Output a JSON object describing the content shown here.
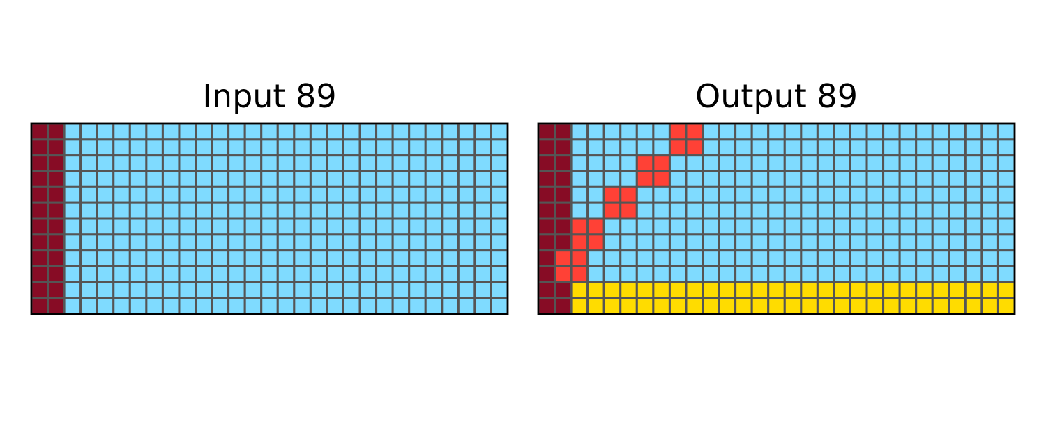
{
  "palette": {
    "0": "#000000",
    "1": "#0074d9",
    "2": "#ff4136",
    "3": "#2ecc40",
    "4": "#ffdc00",
    "5": "#aaaaaa",
    "6": "#f012be",
    "7": "#ff851b",
    "8": "#7fdbff",
    "9": "#870c25"
  },
  "grid_line_color": "#555555",
  "frame_color": "#000000",
  "panels": [
    {
      "title": "Input 89",
      "rows": [
        "99888888888888888888888888888",
        "99888888888888888888888888888",
        "99888888888888888888888888888",
        "99888888888888888888888888888",
        "99888888888888888888888888888",
        "99888888888888888888888888888",
        "99888888888888888888888888888",
        "99888888888888888888888888888",
        "99888888888888888888888888888",
        "99888888888888888888888888888",
        "99888888888888888888888888888",
        "99888888888888888888888888888"
      ]
    },
    {
      "title": "Output 89",
      "rows": [
        "99888888228888888888888888888",
        "99888888228888888888888888888",
        "99888822888888888888888888888",
        "99888822888888888888888888888",
        "99882288888888888888888888888",
        "99882288888888888888888888888",
        "99228888888888888888888888888",
        "99228888888888888888888888888",
        "92288888888888888888888888888",
        "92288888888888888888888888888",
        "99444444444444444444444444444",
        "99444444444444444444444444444"
      ]
    }
  ]
}
